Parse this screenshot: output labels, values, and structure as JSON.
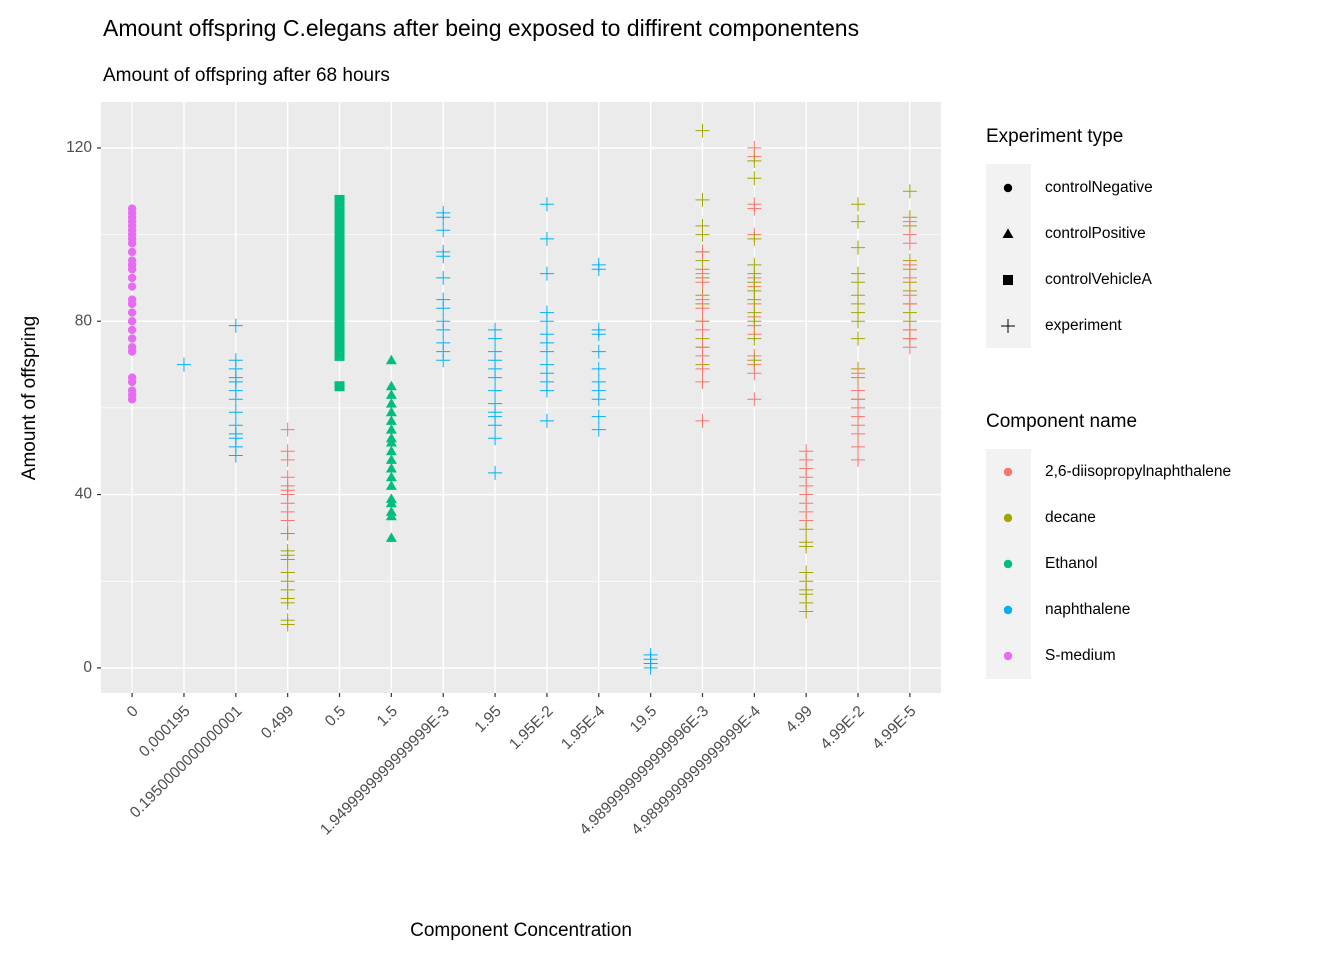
{
  "chart_data": {
    "type": "scatter",
    "title": "Amount offspring C.elegans after being exposed to diffirent componentens",
    "subtitle": "Amount of offspring after 68 hours",
    "x_label": "Component Concentration",
    "y_label": "Amount of offspring",
    "categories": [
      "0",
      "0,000195",
      "0.1950000000000001",
      "0.499",
      "0.5",
      "1.5",
      "1.9499999999999999E-3",
      "1.95",
      "1.95E-2",
      "1.95E-4",
      "19.5",
      "4.9899999999999996E-3",
      "4.9899999999999999E-4",
      "4.99",
      "4.99E-2",
      "4.99E-5"
    ],
    "ylim": [
      -5.8,
      130.6
    ],
    "yticks": [
      0,
      40,
      80,
      120
    ],
    "grid": true,
    "shape_legend": {
      "title": "Experiment type",
      "entries": [
        "controlNegative",
        "controlPositive",
        "controlVehicleA",
        "experiment"
      ],
      "shapes": [
        "circle",
        "triangle",
        "square",
        "plus"
      ]
    },
    "color_legend": {
      "title": "Component name",
      "entries": [
        "2,6-diisopropylnaphthalene",
        "decane",
        "Ethanol",
        "naphthalene",
        "S-medium"
      ],
      "colors": [
        "#F8766D",
        "#A3A500",
        "#00BF7D",
        "#00B0F6",
        "#E76BF3"
      ]
    },
    "series": [
      {
        "component": 4,
        "experiment": 0,
        "x": [
          "0",
          "0",
          "0",
          "0",
          "0",
          "0",
          "0",
          "0",
          "0",
          "0",
          "0",
          "0",
          "0",
          "0",
          "0",
          "0",
          "0",
          "0",
          "0",
          "0",
          "0",
          "0",
          "0",
          "0",
          "0",
          "0",
          "0",
          "0"
        ],
        "values": [
          62,
          63,
          64,
          66,
          67,
          73,
          74,
          76,
          78,
          80,
          82,
          84,
          85,
          88,
          90,
          92,
          93,
          94,
          96,
          98,
          99,
          100,
          101,
          102,
          103,
          104,
          105,
          106
        ]
      },
      {
        "component": 3,
        "experiment": 3,
        "x": [
          "0,000195"
        ],
        "values": [
          70
        ]
      },
      {
        "component": 3,
        "experiment": 3,
        "x": [
          "0.1950000000000001",
          "0.1950000000000001",
          "0.1950000000000001",
          "0.1950000000000001",
          "0.1950000000000001",
          "0.1950000000000001",
          "0.1950000000000001",
          "0.1950000000000001",
          "0.1950000000000001",
          "0.1950000000000001",
          "0.1950000000000001",
          "0.1950000000000001",
          "0.1950000000000001"
        ],
        "values": [
          79,
          71,
          69,
          67,
          66,
          64,
          62,
          59,
          56,
          54,
          53,
          51,
          49
        ]
      },
      {
        "component": 3,
        "experiment": 3,
        "x": [
          "1.9499999999999999E-3",
          "1.9499999999999999E-3",
          "1.9499999999999999E-3",
          "1.9499999999999999E-3",
          "1.9499999999999999E-3",
          "1.9499999999999999E-3",
          "1.9499999999999999E-3",
          "1.9499999999999999E-3",
          "1.9499999999999999E-3",
          "1.9499999999999999E-3",
          "1.9499999999999999E-3",
          "1.9499999999999999E-3",
          "1.9499999999999999E-3"
        ],
        "values": [
          105,
          104,
          101,
          96,
          95,
          90,
          85,
          83,
          80,
          78,
          75,
          73,
          71
        ]
      },
      {
        "component": 3,
        "experiment": 3,
        "x": [
          "1.95",
          "1.95",
          "1.95",
          "1.95",
          "1.95",
          "1.95",
          "1.95",
          "1.95",
          "1.95",
          "1.95",
          "1.95",
          "1.95",
          "1.95"
        ],
        "values": [
          78,
          76,
          73,
          71,
          69,
          67,
          64,
          61,
          59,
          58,
          56,
          53,
          45
        ]
      },
      {
        "component": 3,
        "experiment": 3,
        "x": [
          "1.95E-2",
          "1.95E-2",
          "1.95E-2",
          "1.95E-2",
          "1.95E-2",
          "1.95E-2",
          "1.95E-2",
          "1.95E-2",
          "1.95E-2",
          "1.95E-2",
          "1.95E-2",
          "1.95E-2",
          "1.95E-2"
        ],
        "values": [
          107,
          99,
          91,
          82,
          80,
          77,
          75,
          73,
          70,
          68,
          66,
          64,
          57
        ]
      },
      {
        "component": 3,
        "experiment": 3,
        "x": [
          "1.95E-4",
          "1.95E-4",
          "1.95E-4",
          "1.95E-4",
          "1.95E-4",
          "1.95E-4",
          "1.95E-4",
          "1.95E-4",
          "1.95E-4",
          "1.95E-4",
          "1.95E-4"
        ],
        "values": [
          93,
          92,
          78,
          77,
          73,
          69,
          66,
          64,
          62,
          58,
          55
        ]
      },
      {
        "component": 3,
        "experiment": 3,
        "x": [
          "19.5",
          "19.5",
          "19.5",
          "19.5"
        ],
        "values": [
          3,
          2,
          1,
          0
        ]
      },
      {
        "component": 0,
        "experiment": 3,
        "x": [
          "0.499",
          "0.499",
          "0.499",
          "0.499",
          "0.499",
          "0.499",
          "0.499",
          "0.499",
          "0.499",
          "0.499",
          "0.499"
        ],
        "values": [
          55,
          50,
          48,
          44,
          42,
          41,
          40,
          38,
          36,
          34,
          31
        ]
      },
      {
        "component": 1,
        "experiment": 3,
        "x": [
          "0.499",
          "0.499",
          "0.499",
          "0.499",
          "0.499",
          "0.499",
          "0.499",
          "0.499",
          "0.499",
          "0.499",
          "0.499"
        ],
        "values": [
          31,
          27,
          26,
          25,
          22,
          20,
          18,
          16,
          15,
          11,
          10
        ]
      },
      {
        "component": 1,
        "experiment": 3,
        "x": [
          "4.9899999999999996E-3",
          "4.9899999999999996E-3",
          "4.9899999999999996E-3",
          "4.9899999999999996E-3",
          "4.9899999999999996E-3",
          "4.9899999999999996E-3",
          "4.9899999999999996E-3",
          "4.9899999999999996E-3",
          "4.9899999999999996E-3",
          "4.9899999999999996E-3",
          "4.9899999999999996E-3",
          "4.9899999999999996E-3",
          "4.9899999999999996E-3",
          "4.9899999999999996E-3"
        ],
        "values": [
          124,
          108,
          102,
          100,
          96,
          94,
          92,
          90,
          86,
          84,
          80,
          76,
          74,
          70
        ]
      },
      {
        "component": 0,
        "experiment": 3,
        "x": [
          "4.9899999999999996E-3",
          "4.9899999999999996E-3",
          "4.9899999999999996E-3",
          "4.9899999999999996E-3",
          "4.9899999999999996E-3",
          "4.9899999999999996E-3",
          "4.9899999999999996E-3",
          "4.9899999999999996E-3",
          "4.9899999999999996E-3",
          "4.9899999999999996E-3",
          "4.9899999999999996E-3",
          "4.9899999999999996E-3"
        ],
        "values": [
          96,
          91,
          89,
          85,
          83,
          80,
          78,
          74,
          72,
          69,
          66,
          57
        ]
      },
      {
        "component": 0,
        "experiment": 3,
        "x": [
          "4.9899999999999999E-4",
          "4.9899999999999999E-4",
          "4.9899999999999999E-4",
          "4.9899999999999999E-4",
          "4.9899999999999999E-4",
          "4.9899999999999999E-4",
          "4.9899999999999999E-4",
          "4.9899999999999999E-4",
          "4.9899999999999999E-4",
          "4.9899999999999999E-4",
          "4.9899999999999999E-4",
          "4.9899999999999999E-4",
          "4.9899999999999999E-4",
          "4.9899999999999999E-4",
          "4.9899999999999999E-4"
        ],
        "values": [
          120,
          118,
          107,
          106,
          100,
          90,
          88,
          84,
          81,
          79,
          77,
          72,
          70,
          68,
          62
        ]
      },
      {
        "component": 1,
        "experiment": 3,
        "x": [
          "4.9899999999999999E-4",
          "4.9899999999999999E-4",
          "4.9899999999999999E-4",
          "4.9899999999999999E-4",
          "4.9899999999999999E-4",
          "4.9899999999999999E-4",
          "4.9899999999999999E-4",
          "4.9899999999999999E-4",
          "4.9899999999999999E-4",
          "4.9899999999999999E-4",
          "4.9899999999999999E-4",
          "4.9899999999999999E-4"
        ],
        "values": [
          117,
          113,
          99,
          93,
          91,
          89,
          87,
          85,
          82,
          80,
          76,
          71
        ]
      },
      {
        "component": 0,
        "experiment": 3,
        "x": [
          "4.99",
          "4.99",
          "4.99",
          "4.99",
          "4.99",
          "4.99",
          "4.99",
          "4.99",
          "4.99"
        ],
        "values": [
          50,
          48,
          46,
          44,
          42,
          40,
          38,
          36,
          34
        ]
      },
      {
        "component": 1,
        "experiment": 3,
        "x": [
          "4.99",
          "4.99",
          "4.99",
          "4.99",
          "4.99",
          "4.99",
          "4.99",
          "4.99",
          "4.99"
        ],
        "values": [
          32,
          29,
          28,
          22,
          20,
          18,
          17,
          15,
          13
        ]
      },
      {
        "component": 1,
        "experiment": 3,
        "x": [
          "4.99E-2",
          "4.99E-2",
          "4.99E-2",
          "4.99E-2",
          "4.99E-2",
          "4.99E-2",
          "4.99E-2",
          "4.99E-2",
          "4.99E-2",
          "4.99E-2",
          "4.99E-2",
          "4.99E-2",
          "4.99E-2"
        ],
        "values": [
          107,
          103,
          97,
          91,
          89,
          86,
          84,
          82,
          80,
          76,
          69,
          67,
          62
        ]
      },
      {
        "component": 0,
        "experiment": 3,
        "x": [
          "4.99E-2",
          "4.99E-2",
          "4.99E-2",
          "4.99E-2",
          "4.99E-2",
          "4.99E-2",
          "4.99E-2",
          "4.99E-2",
          "4.99E-2"
        ],
        "values": [
          68,
          64,
          62,
          60,
          58,
          56,
          54,
          51,
          48
        ]
      },
      {
        "component": 1,
        "experiment": 3,
        "x": [
          "4.99E-5",
          "4.99E-5",
          "4.99E-5",
          "4.99E-5",
          "4.99E-5",
          "4.99E-5",
          "4.99E-5",
          "4.99E-5",
          "4.99E-5",
          "4.99E-5",
          "4.99E-5",
          "4.99E-5"
        ],
        "values": [
          110,
          104,
          102,
          94,
          92,
          89,
          87,
          84,
          82,
          80,
          78,
          76
        ]
      },
      {
        "component": 0,
        "experiment": 3,
        "x": [
          "4.99E-5",
          "4.99E-5",
          "4.99E-5",
          "4.99E-5",
          "4.99E-5",
          "4.99E-5",
          "4.99E-5",
          "4.99E-5",
          "4.99E-5",
          "4.99E-5"
        ],
        "values": [
          103,
          100,
          98,
          93,
          90,
          86,
          84,
          78,
          76,
          74
        ]
      },
      {
        "component": 2,
        "experiment": 2,
        "x": [
          "0.5",
          "0.5",
          "0.5",
          "0.5",
          "0.5",
          "0.5",
          "0.5",
          "0.5",
          "0.5",
          "0.5",
          "0.5",
          "0.5",
          "0.5",
          "0.5",
          "0.5",
          "0.5",
          "0.5",
          "0.5",
          "0.5",
          "0.5"
        ],
        "values": [
          65,
          72,
          74,
          76,
          78,
          80,
          82,
          84,
          86,
          88,
          90,
          92,
          94,
          96,
          98,
          100,
          102,
          104,
          106,
          108
        ]
      },
      {
        "component": 2,
        "experiment": 1,
        "x": [
          "1.5",
          "1.5",
          "1.5",
          "1.5",
          "1.5",
          "1.5",
          "1.5",
          "1.5",
          "1.5",
          "1.5",
          "1.5",
          "1.5",
          "1.5",
          "1.5",
          "1.5",
          "1.5",
          "1.5",
          "1.5",
          "1.5"
        ],
        "values": [
          71,
          65,
          63,
          61,
          59,
          57,
          55,
          53,
          52,
          50,
          48,
          46,
          44,
          42,
          39,
          38,
          36,
          35,
          30
        ]
      }
    ]
  }
}
